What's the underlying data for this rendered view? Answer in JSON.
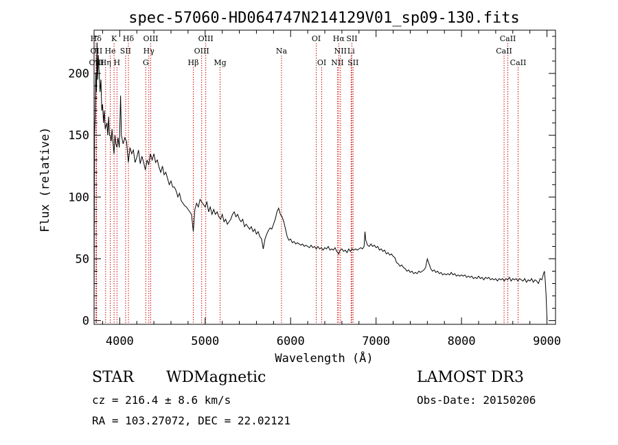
{
  "chart_data": {
    "type": "line",
    "title": "spec-57060-HD064747N214129V01_sp09-130.fits",
    "xlabel": "Wavelength (Å)",
    "ylabel": "Flux (relative)",
    "xlim": [
      3700,
      9100
    ],
    "ylim": [
      -3,
      235
    ],
    "xticks": [
      4000,
      5000,
      6000,
      7000,
      8000,
      9000
    ],
    "xtick_labels": [
      "4000",
      "5000",
      "6000",
      "7000",
      "8000",
      "9000"
    ],
    "yticks": [
      0,
      50,
      100,
      150,
      200
    ],
    "ytick_labels": [
      "0",
      "50",
      "100",
      "150",
      "200"
    ],
    "series": [
      {
        "name": "spectrum",
        "points": [
          [
            3700,
            0
          ],
          [
            3705,
            150
          ],
          [
            3712,
            165
          ],
          [
            3720,
            200
          ],
          [
            3728,
            185
          ],
          [
            3735,
            225
          ],
          [
            3742,
            195
          ],
          [
            3750,
            215
          ],
          [
            3760,
            200
          ],
          [
            3770,
            185
          ],
          [
            3780,
            195
          ],
          [
            3790,
            170
          ],
          [
            3800,
            175
          ],
          [
            3810,
            160
          ],
          [
            3820,
            170
          ],
          [
            3830,
            155
          ],
          [
            3850,
            160
          ],
          [
            3860,
            150
          ],
          [
            3870,
            165
          ],
          [
            3880,
            150
          ],
          [
            3890,
            150
          ],
          [
            3900,
            145
          ],
          [
            3910,
            155
          ],
          [
            3920,
            145
          ],
          [
            3933,
            135
          ],
          [
            3945,
            150
          ],
          [
            3955,
            143
          ],
          [
            3968,
            140
          ],
          [
            3980,
            148
          ],
          [
            3995,
            140
          ],
          [
            4000,
            152
          ],
          [
            4010,
            182
          ],
          [
            4020,
            150
          ],
          [
            4040,
            143
          ],
          [
            4060,
            148
          ],
          [
            4080,
            145
          ],
          [
            4101,
            128
          ],
          [
            4120,
            140
          ],
          [
            4140,
            135
          ],
          [
            4160,
            138
          ],
          [
            4180,
            128
          ],
          [
            4200,
            132
          ],
          [
            4220,
            138
          ],
          [
            4240,
            127
          ],
          [
            4260,
            133
          ],
          [
            4280,
            128
          ],
          [
            4300,
            122
          ],
          [
            4320,
            130
          ],
          [
            4340,
            126
          ],
          [
            4360,
            135
          ],
          [
            4380,
            130
          ],
          [
            4400,
            135
          ],
          [
            4420,
            128
          ],
          [
            4440,
            130
          ],
          [
            4460,
            124
          ],
          [
            4480,
            120
          ],
          [
            4500,
            125
          ],
          [
            4520,
            118
          ],
          [
            4540,
            120
          ],
          [
            4560,
            115
          ],
          [
            4580,
            110
          ],
          [
            4600,
            113
          ],
          [
            4620,
            108
          ],
          [
            4640,
            108
          ],
          [
            4660,
            105
          ],
          [
            4680,
            100
          ],
          [
            4700,
            103
          ],
          [
            4720,
            97
          ],
          [
            4740,
            95
          ],
          [
            4760,
            93
          ],
          [
            4780,
            92
          ],
          [
            4800,
            90
          ],
          [
            4820,
            88
          ],
          [
            4840,
            86
          ],
          [
            4861,
            72
          ],
          [
            4880,
            90
          ],
          [
            4900,
            95
          ],
          [
            4920,
            92
          ],
          [
            4940,
            98
          ],
          [
            4960,
            96
          ],
          [
            4980,
            94
          ],
          [
            5000,
            92
          ],
          [
            5020,
            96
          ],
          [
            5040,
            88
          ],
          [
            5060,
            92
          ],
          [
            5080,
            86
          ],
          [
            5100,
            90
          ],
          [
            5120,
            86
          ],
          [
            5140,
            88
          ],
          [
            5160,
            84
          ],
          [
            5180,
            82
          ],
          [
            5200,
            86
          ],
          [
            5220,
            80
          ],
          [
            5240,
            82
          ],
          [
            5260,
            78
          ],
          [
            5280,
            80
          ],
          [
            5300,
            82
          ],
          [
            5320,
            86
          ],
          [
            5340,
            88
          ],
          [
            5360,
            84
          ],
          [
            5380,
            86
          ],
          [
            5400,
            82
          ],
          [
            5420,
            80
          ],
          [
            5440,
            82
          ],
          [
            5460,
            76
          ],
          [
            5480,
            78
          ],
          [
            5500,
            76
          ],
          [
            5520,
            74
          ],
          [
            5540,
            76
          ],
          [
            5560,
            72
          ],
          [
            5580,
            74
          ],
          [
            5600,
            70
          ],
          [
            5620,
            72
          ],
          [
            5640,
            68
          ],
          [
            5660,
            66
          ],
          [
            5680,
            58
          ],
          [
            5700,
            66
          ],
          [
            5720,
            70
          ],
          [
            5740,
            73
          ],
          [
            5760,
            75
          ],
          [
            5780,
            74
          ],
          [
            5800,
            78
          ],
          [
            5820,
            82
          ],
          [
            5840,
            88
          ],
          [
            5860,
            91
          ],
          [
            5880,
            86
          ],
          [
            5900,
            84
          ],
          [
            5920,
            80
          ],
          [
            5940,
            74
          ],
          [
            5960,
            68
          ],
          [
            5980,
            65
          ],
          [
            6000,
            66
          ],
          [
            6020,
            63
          ],
          [
            6040,
            64
          ],
          [
            6060,
            62
          ],
          [
            6080,
            63
          ],
          [
            6100,
            62
          ],
          [
            6120,
            61
          ],
          [
            6140,
            62
          ],
          [
            6160,
            60
          ],
          [
            6180,
            61
          ],
          [
            6200,
            60
          ],
          [
            6220,
            59
          ],
          [
            6240,
            61
          ],
          [
            6260,
            59
          ],
          [
            6280,
            60
          ],
          [
            6300,
            58
          ],
          [
            6320,
            60
          ],
          [
            6340,
            58
          ],
          [
            6360,
            59
          ],
          [
            6380,
            57
          ],
          [
            6400,
            59
          ],
          [
            6420,
            58
          ],
          [
            6440,
            60
          ],
          [
            6460,
            57
          ],
          [
            6480,
            58
          ],
          [
            6500,
            57
          ],
          [
            6520,
            59
          ],
          [
            6540,
            56
          ],
          [
            6563,
            54
          ],
          [
            6580,
            57
          ],
          [
            6600,
            58
          ],
          [
            6620,
            56
          ],
          [
            6640,
            57
          ],
          [
            6660,
            55
          ],
          [
            6680,
            58
          ],
          [
            6700,
            56
          ],
          [
            6720,
            58
          ],
          [
            6740,
            57
          ],
          [
            6760,
            58
          ],
          [
            6780,
            57
          ],
          [
            6800,
            58
          ],
          [
            6820,
            59
          ],
          [
            6840,
            58
          ],
          [
            6860,
            60
          ],
          [
            6870,
            72
          ],
          [
            6880,
            65
          ],
          [
            6900,
            61
          ],
          [
            6920,
            60
          ],
          [
            6940,
            62
          ],
          [
            6960,
            60
          ],
          [
            6980,
            61
          ],
          [
            7000,
            59
          ],
          [
            7020,
            60
          ],
          [
            7040,
            57
          ],
          [
            7060,
            58
          ],
          [
            7080,
            56
          ],
          [
            7100,
            57
          ],
          [
            7120,
            54
          ],
          [
            7140,
            55
          ],
          [
            7160,
            53
          ],
          [
            7180,
            54
          ],
          [
            7200,
            52
          ],
          [
            7220,
            51
          ],
          [
            7240,
            47
          ],
          [
            7260,
            46
          ],
          [
            7280,
            44
          ],
          [
            7300,
            45
          ],
          [
            7320,
            43
          ],
          [
            7340,
            42
          ],
          [
            7360,
            40
          ],
          [
            7380,
            41
          ],
          [
            7400,
            39
          ],
          [
            7420,
            40
          ],
          [
            7440,
            38
          ],
          [
            7460,
            39
          ],
          [
            7480,
            38
          ],
          [
            7500,
            40
          ],
          [
            7520,
            39
          ],
          [
            7540,
            40
          ],
          [
            7560,
            41
          ],
          [
            7580,
            43
          ],
          [
            7600,
            50
          ],
          [
            7620,
            46
          ],
          [
            7640,
            42
          ],
          [
            7660,
            40
          ],
          [
            7680,
            41
          ],
          [
            7700,
            39
          ],
          [
            7720,
            40
          ],
          [
            7740,
            38
          ],
          [
            7760,
            39
          ],
          [
            7780,
            37
          ],
          [
            7800,
            38
          ],
          [
            7820,
            37
          ],
          [
            7840,
            38
          ],
          [
            7860,
            37
          ],
          [
            7880,
            39
          ],
          [
            7900,
            37
          ],
          [
            7920,
            38
          ],
          [
            7940,
            36
          ],
          [
            7960,
            37
          ],
          [
            7980,
            36
          ],
          [
            8000,
            37
          ],
          [
            8020,
            36
          ],
          [
            8040,
            37
          ],
          [
            8060,
            35
          ],
          [
            8080,
            36
          ],
          [
            8100,
            35
          ],
          [
            8120,
            36
          ],
          [
            8140,
            34
          ],
          [
            8160,
            35
          ],
          [
            8180,
            34
          ],
          [
            8200,
            36
          ],
          [
            8220,
            34
          ],
          [
            8240,
            35
          ],
          [
            8260,
            33
          ],
          [
            8280,
            35
          ],
          [
            8300,
            34
          ],
          [
            8320,
            35
          ],
          [
            8340,
            33
          ],
          [
            8360,
            34
          ],
          [
            8380,
            33
          ],
          [
            8400,
            34
          ],
          [
            8420,
            32
          ],
          [
            8440,
            34
          ],
          [
            8460,
            33
          ],
          [
            8480,
            34
          ],
          [
            8500,
            32
          ],
          [
            8520,
            34
          ],
          [
            8540,
            33
          ],
          [
            8560,
            35
          ],
          [
            8580,
            32
          ],
          [
            8600,
            34
          ],
          [
            8620,
            33
          ],
          [
            8640,
            34
          ],
          [
            8660,
            32
          ],
          [
            8680,
            34
          ],
          [
            8700,
            33
          ],
          [
            8720,
            32
          ],
          [
            8740,
            34
          ],
          [
            8760,
            31
          ],
          [
            8780,
            33
          ],
          [
            8800,
            32
          ],
          [
            8820,
            34
          ],
          [
            8840,
            31
          ],
          [
            8860,
            33
          ],
          [
            8880,
            32
          ],
          [
            8900,
            30
          ],
          [
            8920,
            34
          ],
          [
            8940,
            33
          ],
          [
            8960,
            38
          ],
          [
            8970,
            40
          ],
          [
            8980,
            32
          ],
          [
            8990,
            20
          ],
          [
            9000,
            1
          ]
        ]
      }
    ],
    "line_markers": [
      {
        "label": "Hδ",
        "x": 3722,
        "row": 0
      },
      {
        "label": "K",
        "x": 3934,
        "row": 0
      },
      {
        "label": "Hδ",
        "x": 4102,
        "row": 0
      },
      {
        "label": "OIII",
        "x": 4363,
        "row": 0
      },
      {
        "label": "OIII",
        "x": 5007,
        "row": 0
      },
      {
        "label": "OI",
        "x": 6300,
        "row": 0
      },
      {
        "label": "Hα",
        "x": 6563,
        "row": 0
      },
      {
        "label": "SII",
        "x": 6717,
        "row": 0
      },
      {
        "label": "CaII",
        "x": 8542,
        "row": 0
      },
      {
        "label": "OII",
        "x": 3727,
        "row": 1
      },
      {
        "label": "He",
        "x": 3889,
        "row": 1
      },
      {
        "label": "SII",
        "x": 4069,
        "row": 1
      },
      {
        "label": "Hγ",
        "x": 4341,
        "row": 1
      },
      {
        "label": "OIII",
        "x": 4959,
        "row": 1
      },
      {
        "label": "Na",
        "x": 5893,
        "row": 1
      },
      {
        "label": "NII",
        "x": 6583,
        "row": 1
      },
      {
        "label": "Li",
        "x": 6708,
        "row": 1
      },
      {
        "label": "CaII",
        "x": 8498,
        "row": 1
      },
      {
        "label": "OIII",
        "x": 3728,
        "row": 2
      },
      {
        "label": "Hη",
        "x": 3835,
        "row": 2
      },
      {
        "label": "H",
        "x": 3968,
        "row": 2
      },
      {
        "label": "G",
        "x": 4305,
        "row": 2
      },
      {
        "label": "Hβ",
        "x": 4861,
        "row": 2
      },
      {
        "label": "Mg",
        "x": 5175,
        "row": 2
      },
      {
        "label": "OI",
        "x": 6364,
        "row": 2
      },
      {
        "label": "NII",
        "x": 6548,
        "row": 2
      },
      {
        "label": "SII",
        "x": 6731,
        "row": 2
      },
      {
        "label": "CaII",
        "x": 8662,
        "row": 2
      }
    ],
    "marker_color": "#cc0000"
  },
  "info": {
    "object_type": "STAR",
    "subclass": "WDMagnetic",
    "survey": "LAMOST DR3",
    "cz": "cz = 216.4 ± 8.6 km/s",
    "obs_date": "Obs-Date: 20150206",
    "radec": "RA = 103.27072, DEC =  22.02121"
  }
}
